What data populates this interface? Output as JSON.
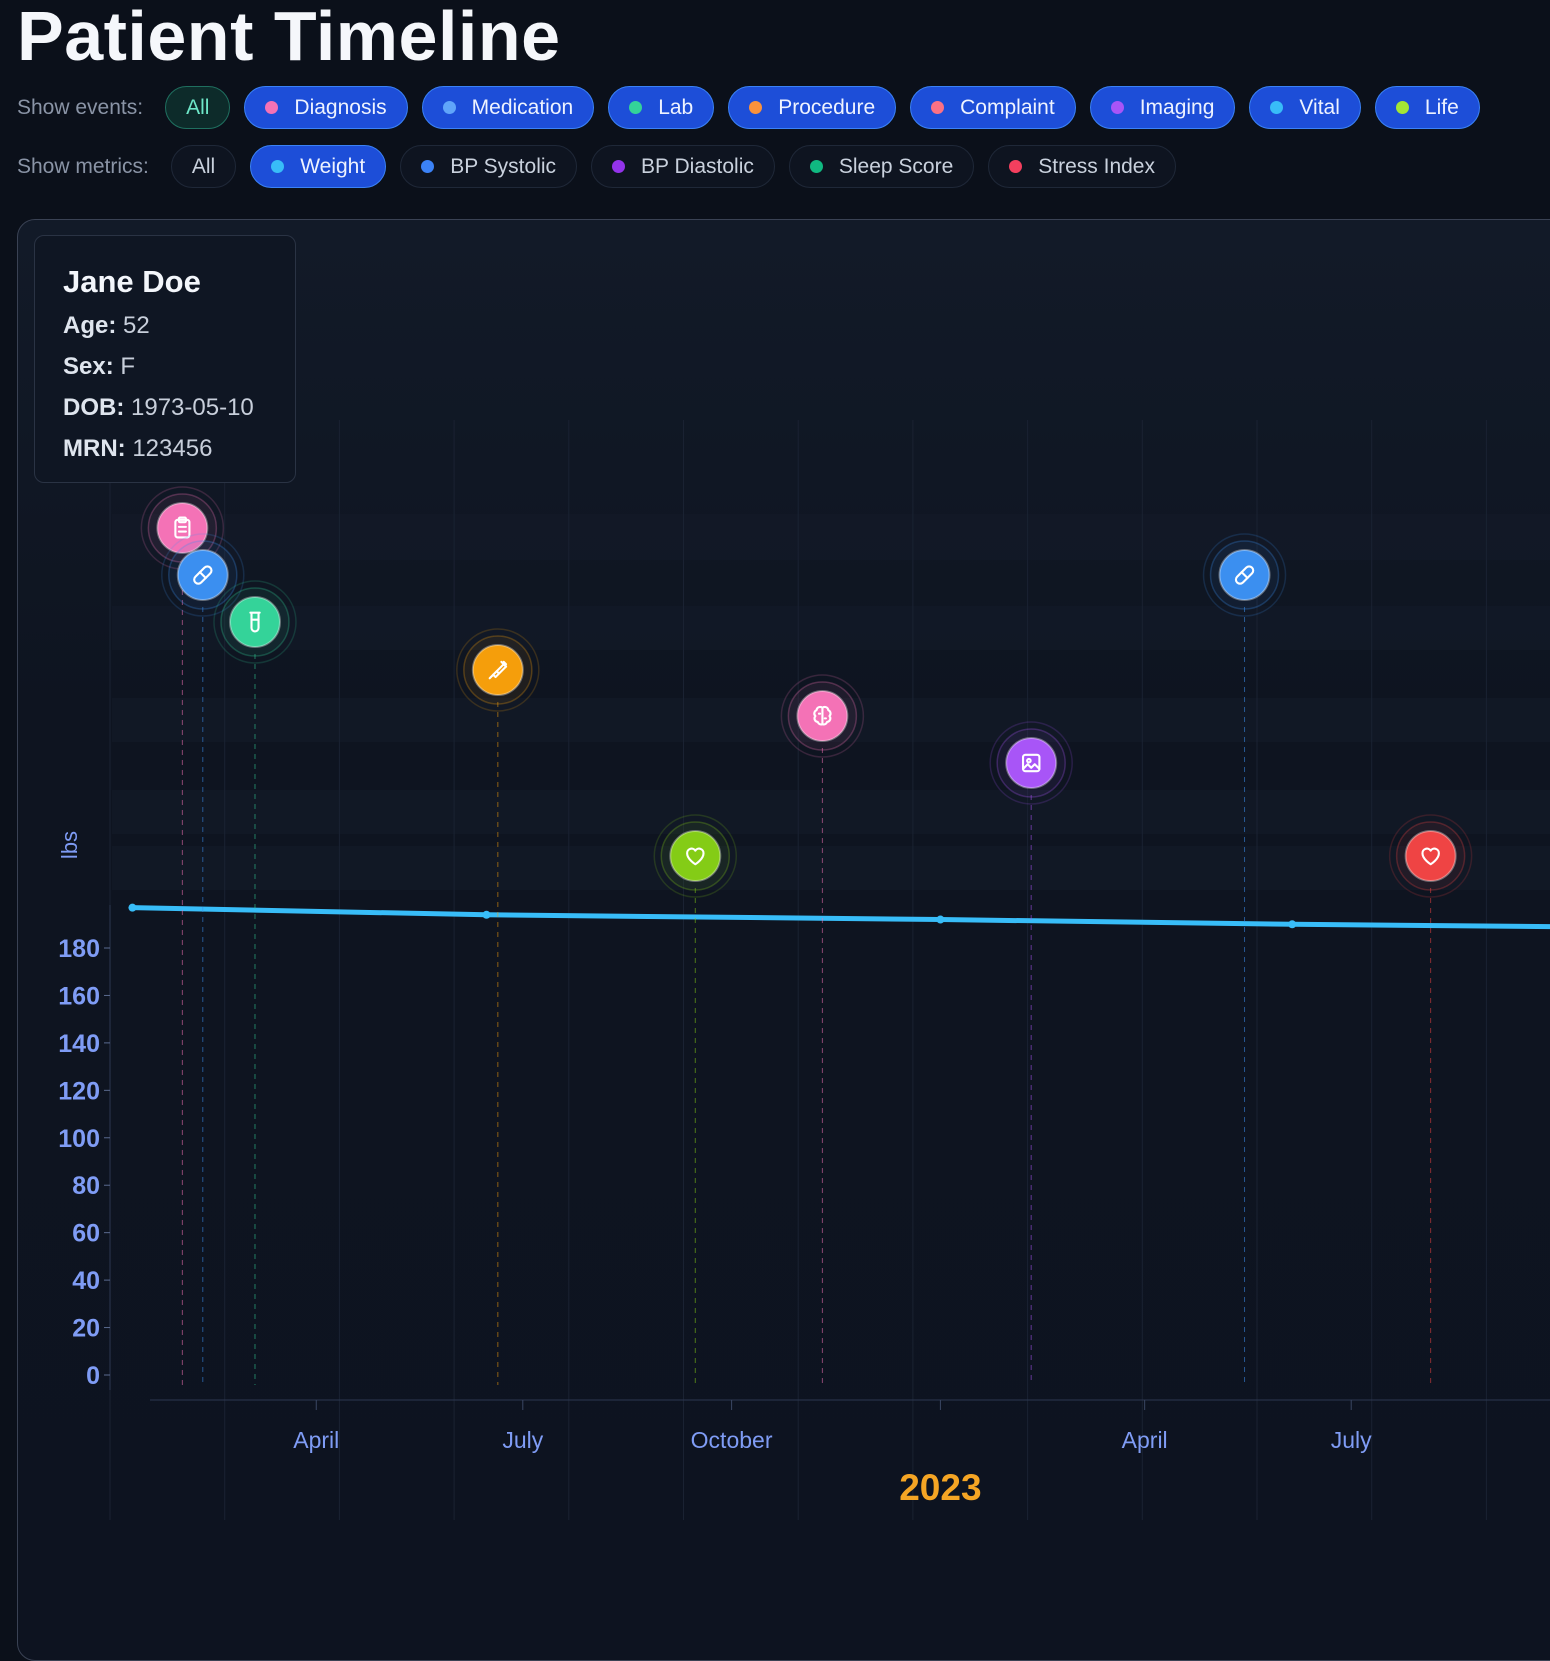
{
  "page": {
    "title": "Patient Timeline"
  },
  "filters": {
    "events_label": "Show events:",
    "events": [
      {
        "label": "All",
        "color": "",
        "active": "all"
      },
      {
        "label": "Diagnosis",
        "color": "#f472b6",
        "active": "on"
      },
      {
        "label": "Medication",
        "color": "#60a5fa",
        "active": "on"
      },
      {
        "label": "Lab",
        "color": "#34d399",
        "active": "on"
      },
      {
        "label": "Procedure",
        "color": "#fb923c",
        "active": "on"
      },
      {
        "label": "Complaint",
        "color": "#fb7185",
        "active": "on"
      },
      {
        "label": "Imaging",
        "color": "#a855f7",
        "active": "on"
      },
      {
        "label": "Vital",
        "color": "#38bdf8",
        "active": "on"
      },
      {
        "label": "Life",
        "color": "#a3e635",
        "active": "on"
      }
    ],
    "metrics_label": "Show metrics:",
    "metrics": [
      {
        "label": "All",
        "color": "",
        "active": "off"
      },
      {
        "label": "Weight",
        "color": "#38bdf8",
        "active": "on"
      },
      {
        "label": "BP Systolic",
        "color": "#3b82f6",
        "active": "off"
      },
      {
        "label": "BP Diastolic",
        "color": "#9333ea",
        "active": "off"
      },
      {
        "label": "Sleep Score",
        "color": "#10b981",
        "active": "off"
      },
      {
        "label": "Stress Index",
        "color": "#f43f5e",
        "active": "off"
      }
    ]
  },
  "patient": {
    "name": "Jane Doe",
    "age_label": "Age:",
    "age": "52",
    "sex_label": "Sex:",
    "sex": "F",
    "dob_label": "DOB:",
    "dob": "1973-05-10",
    "mrn_label": "MRN:",
    "mrn": "123456"
  },
  "chart_data": {
    "type": "line",
    "ylabel": "lbs",
    "y_ticks": [
      180,
      160,
      140,
      120,
      100,
      80,
      60,
      40,
      20,
      0
    ],
    "x_ticks": [
      "April",
      "July",
      "October",
      "April",
      "July"
    ],
    "year_label": "2023",
    "series": [
      {
        "name": "Weight",
        "color": "#38bdf8",
        "x": [
          "2022-01-10",
          "2022-06-15",
          "2023-01-01",
          "2023-06-05",
          "2023-09-30"
        ],
        "values": [
          197,
          194,
          192,
          190,
          189
        ]
      }
    ],
    "events": [
      {
        "type": "Diagnosis",
        "icon": "clipboard-icon",
        "color": "#f472b6",
        "date": "2022-02-01"
      },
      {
        "type": "Medication",
        "icon": "pill-icon",
        "color": "#3b8ff0",
        "date": "2022-02-10"
      },
      {
        "type": "Lab",
        "icon": "beaker-icon",
        "color": "#34d399",
        "date": "2022-03-05"
      },
      {
        "type": "Procedure",
        "icon": "syringe-icon",
        "color": "#f59e0b",
        "date": "2022-06-20"
      },
      {
        "type": "Life",
        "icon": "heart-icon",
        "color": "#84cc16",
        "date": "2022-09-15"
      },
      {
        "type": "Complaint",
        "icon": "brain-icon",
        "color": "#f472b6",
        "date": "2022-11-10"
      },
      {
        "type": "Imaging",
        "icon": "image-icon",
        "color": "#a855f7",
        "date": "2023-02-10"
      },
      {
        "type": "Medication",
        "icon": "pill-icon",
        "color": "#3b8ff0",
        "date": "2023-05-15"
      },
      {
        "type": "Vital",
        "icon": "heart-icon",
        "color": "#ef4444",
        "date": "2023-08-05"
      }
    ]
  }
}
